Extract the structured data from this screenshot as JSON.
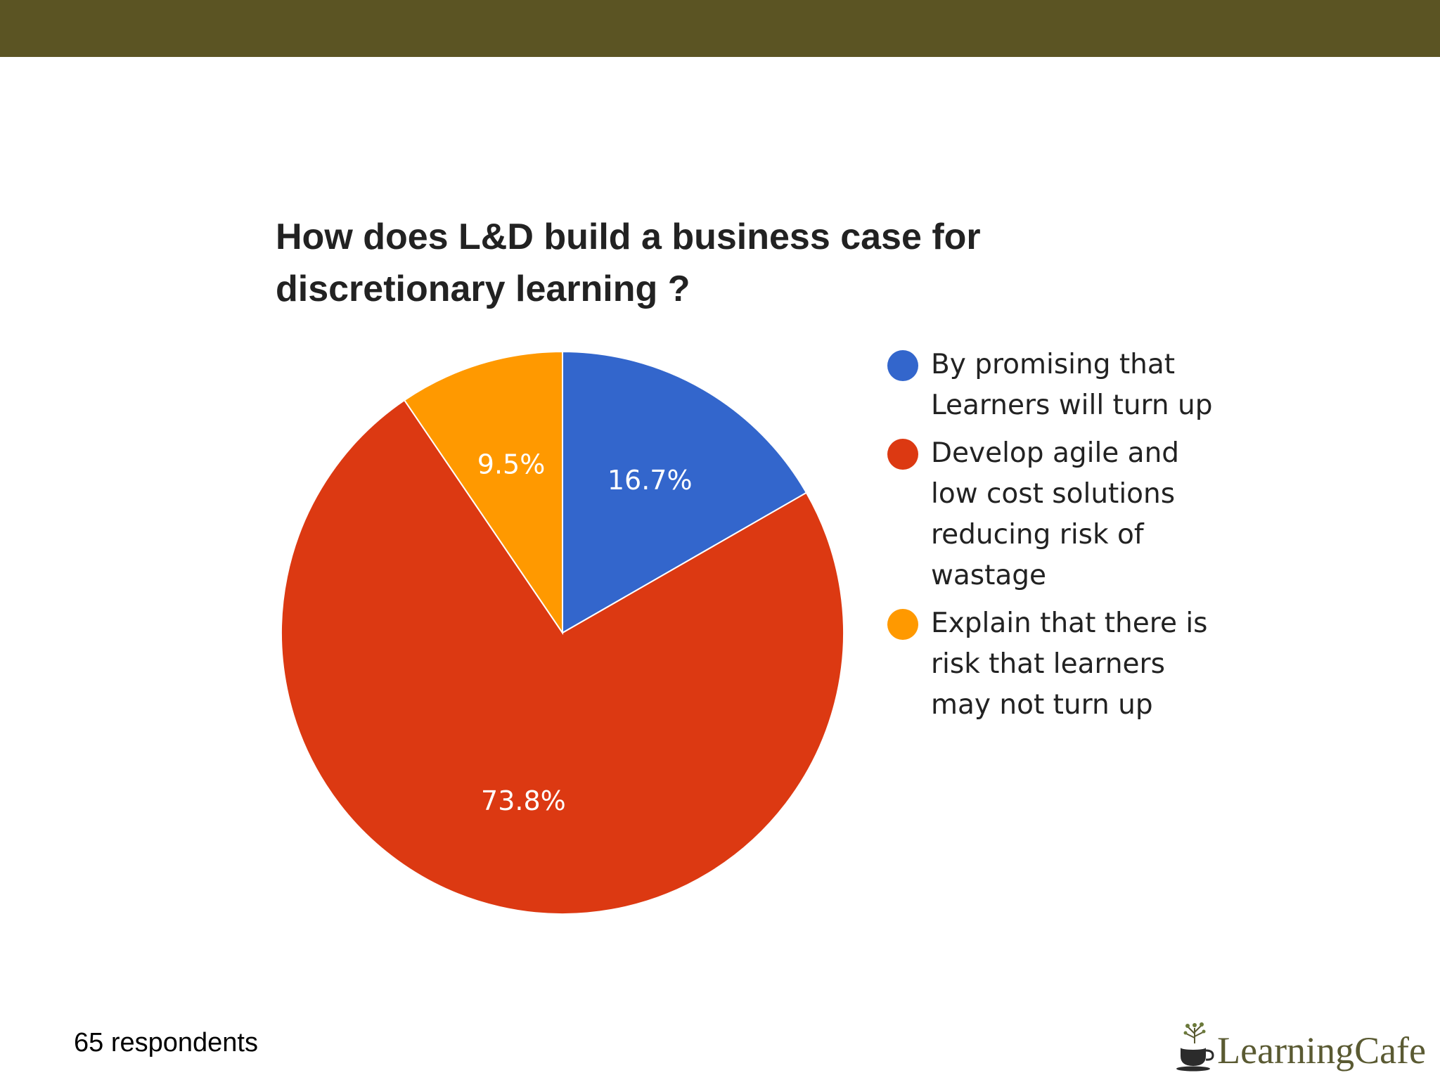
{
  "colors": {
    "top_bar": "#5b5423",
    "series": [
      "#3366cc",
      "#dc3912",
      "#ff9900"
    ],
    "title": "#222222",
    "brand": "#5a5a32"
  },
  "chart_data": {
    "type": "pie",
    "title": "How does L&D build a business case for discretionary learning ?",
    "title_lines": [
      "How does L&D build a business case for",
      "discretionary learning ?"
    ],
    "start_angle_deg": 0,
    "direction": "clockwise",
    "series": [
      {
        "name": "By promising that Learners will turn up",
        "legend_lines": [
          "By promising that",
          "Learners will turn up"
        ],
        "value": 16.7,
        "label": "16.7%",
        "color": "#3366cc"
      },
      {
        "name": "Develop agile and low cost solutions reducing risk of wastage",
        "legend_lines": [
          "Develop agile and",
          "low cost solutions",
          "reducing risk of",
          "wastage"
        ],
        "value": 73.8,
        "label": "73.8%",
        "color": "#dc3912"
      },
      {
        "name": "Explain that there is risk that learners may not turn up",
        "legend_lines": [
          "Explain that there is",
          "risk that learners",
          "may not turn up"
        ],
        "value": 9.5,
        "label": "9.5%",
        "color": "#ff9900"
      }
    ],
    "legend_position": "right"
  },
  "footer": {
    "respondents": "65 respondents"
  },
  "brand": {
    "name": "LearningCafe",
    "logo_icon": "coffee-cup-tree-icon"
  }
}
